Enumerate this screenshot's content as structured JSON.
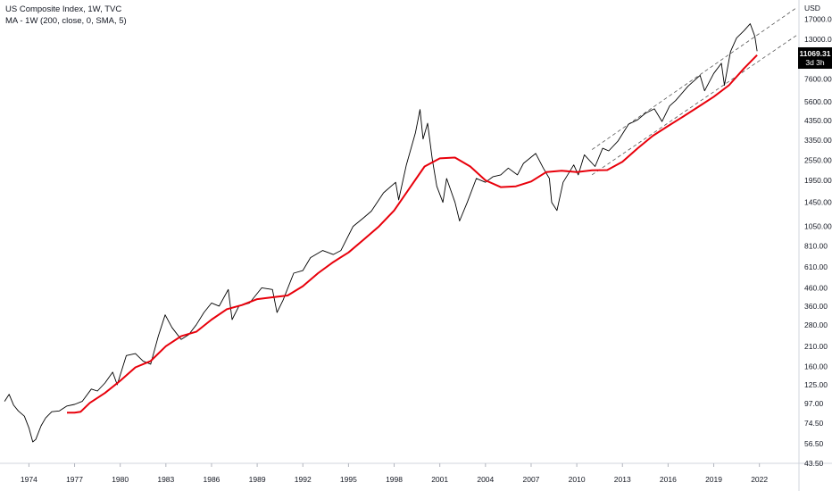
{
  "chart_data": {
    "type": "line",
    "title": "US Composite Index, 1W, TVC",
    "indicator": "MA - 1W (200, close, 0, SMA, 5)",
    "currency": "USD",
    "y_scale": "log",
    "ylim": [
      43.5,
      20000
    ],
    "xlim": [
      1972.6,
      2025.1
    ],
    "y_ticks": [
      "17000.00",
      "13000.00",
      "7600.00",
      "5600.00",
      "4350.00",
      "3350.00",
      "2550.00",
      "1950.00",
      "1450.00",
      "1050.00",
      "810.00",
      "610.00",
      "460.00",
      "360.00",
      "280.00",
      "210.00",
      "160.00",
      "125.00",
      "97.00",
      "74.50",
      "56.50",
      "43.50"
    ],
    "x_ticks": [
      "1974",
      "1977",
      "1980",
      "1983",
      "1986",
      "1989",
      "1992",
      "1995",
      "1998",
      "2001",
      "2004",
      "2007",
      "2010",
      "2013",
      "2016",
      "2019",
      "2022"
    ],
    "last_price": "11069.31",
    "countdown": "3d 3h",
    "grid": false,
    "series": [
      {
        "name": "US Composite Index",
        "color": "#000000",
        "points": [
          [
            1972.9,
            100
          ],
          [
            1973.2,
            110
          ],
          [
            1973.5,
            95
          ],
          [
            1973.8,
            88
          ],
          [
            1974.2,
            82
          ],
          [
            1974.5,
            70
          ],
          [
            1974.75,
            58
          ],
          [
            1974.95,
            60
          ],
          [
            1975.3,
            72
          ],
          [
            1975.6,
            80
          ],
          [
            1976.0,
            87
          ],
          [
            1976.5,
            88
          ],
          [
            1977.0,
            94
          ],
          [
            1977.5,
            96
          ],
          [
            1978.0,
            100
          ],
          [
            1978.6,
            118
          ],
          [
            1979.0,
            115
          ],
          [
            1979.5,
            128
          ],
          [
            1980.0,
            148
          ],
          [
            1980.3,
            125
          ],
          [
            1980.9,
            185
          ],
          [
            1981.5,
            190
          ],
          [
            1982.0,
            172
          ],
          [
            1982.5,
            165
          ],
          [
            1983.0,
            240
          ],
          [
            1983.45,
            320
          ],
          [
            1983.9,
            270
          ],
          [
            1984.5,
            230
          ],
          [
            1985.0,
            245
          ],
          [
            1985.5,
            280
          ],
          [
            1986.0,
            330
          ],
          [
            1986.5,
            375
          ],
          [
            1987.0,
            360
          ],
          [
            1987.6,
            450
          ],
          [
            1987.85,
            300
          ],
          [
            1988.3,
            360
          ],
          [
            1989.0,
            375
          ],
          [
            1989.8,
            460
          ],
          [
            1990.5,
            450
          ],
          [
            1990.8,
            330
          ],
          [
            1991.2,
            390
          ],
          [
            1991.9,
            560
          ],
          [
            1992.5,
            580
          ],
          [
            1993.0,
            690
          ],
          [
            1993.8,
            760
          ],
          [
            1994.5,
            720
          ],
          [
            1995.0,
            760
          ],
          [
            1995.8,
            1050
          ],
          [
            1996.5,
            1180
          ],
          [
            1997.0,
            1290
          ],
          [
            1997.8,
            1650
          ],
          [
            1998.6,
            1900
          ],
          [
            1998.8,
            1500
          ],
          [
            1999.3,
            2400
          ],
          [
            1999.9,
            3700
          ],
          [
            2000.2,
            5050
          ],
          [
            2000.4,
            3400
          ],
          [
            2000.7,
            4200
          ],
          [
            2001.0,
            2600
          ],
          [
            2001.3,
            1800
          ],
          [
            2001.7,
            1450
          ],
          [
            2001.95,
            2000
          ],
          [
            2002.5,
            1450
          ],
          [
            2002.8,
            1130
          ],
          [
            2003.3,
            1450
          ],
          [
            2003.9,
            2000
          ],
          [
            2004.5,
            1900
          ],
          [
            2005.0,
            2050
          ],
          [
            2005.5,
            2100
          ],
          [
            2006.0,
            2300
          ],
          [
            2006.6,
            2100
          ],
          [
            2007.0,
            2450
          ],
          [
            2007.8,
            2800
          ],
          [
            2008.3,
            2300
          ],
          [
            2008.7,
            2000
          ],
          [
            2008.85,
            1450
          ],
          [
            2009.2,
            1300
          ],
          [
            2009.6,
            1900
          ],
          [
            2010.3,
            2400
          ],
          [
            2010.6,
            2100
          ],
          [
            2011.0,
            2750
          ],
          [
            2011.7,
            2350
          ],
          [
            2012.2,
            3000
          ],
          [
            2012.6,
            2900
          ],
          [
            2013.2,
            3300
          ],
          [
            2013.9,
            4150
          ],
          [
            2014.5,
            4400
          ],
          [
            2015.0,
            4800
          ],
          [
            2015.6,
            5100
          ],
          [
            2016.1,
            4300
          ],
          [
            2016.6,
            5300
          ],
          [
            2017.0,
            5700
          ],
          [
            2017.8,
            6900
          ],
          [
            2018.6,
            8000
          ],
          [
            2018.9,
            6500
          ],
          [
            2019.5,
            8200
          ],
          [
            2020.0,
            9400
          ],
          [
            2020.2,
            7000
          ],
          [
            2020.6,
            11000
          ],
          [
            2021.0,
            13200
          ],
          [
            2021.5,
            14600
          ],
          [
            2021.9,
            16000
          ],
          [
            2022.2,
            13500
          ],
          [
            2022.35,
            11069
          ]
        ]
      },
      {
        "name": "MA - 1W (200, close, 0, SMA, 5)",
        "color": "#e8000b",
        "points": [
          [
            1977.0,
            86
          ],
          [
            1977.5,
            86
          ],
          [
            1977.9,
            87
          ],
          [
            1978.5,
            98
          ],
          [
            1979.5,
            112
          ],
          [
            1980.5,
            132
          ],
          [
            1981.5,
            158
          ],
          [
            1982.5,
            172
          ],
          [
            1983.5,
            210
          ],
          [
            1984.5,
            240
          ],
          [
            1985.5,
            255
          ],
          [
            1986.5,
            300
          ],
          [
            1987.5,
            345
          ],
          [
            1988.5,
            365
          ],
          [
            1989.5,
            395
          ],
          [
            1990.5,
            405
          ],
          [
            1991.5,
            415
          ],
          [
            1992.5,
            470
          ],
          [
            1993.5,
            560
          ],
          [
            1994.5,
            650
          ],
          [
            1995.5,
            740
          ],
          [
            1996.5,
            880
          ],
          [
            1997.5,
            1050
          ],
          [
            1998.5,
            1300
          ],
          [
            1999.5,
            1750
          ],
          [
            2000.5,
            2350
          ],
          [
            2001.5,
            2620
          ],
          [
            2002.5,
            2650
          ],
          [
            2003.5,
            2350
          ],
          [
            2004.5,
            1950
          ],
          [
            2005.5,
            1780
          ],
          [
            2006.5,
            1800
          ],
          [
            2007.5,
            1920
          ],
          [
            2008.5,
            2180
          ],
          [
            2009.5,
            2220
          ],
          [
            2010.5,
            2180
          ],
          [
            2011.5,
            2230
          ],
          [
            2012.5,
            2240
          ],
          [
            2013.5,
            2500
          ],
          [
            2014.5,
            3000
          ],
          [
            2015.5,
            3550
          ],
          [
            2016.5,
            4050
          ],
          [
            2017.5,
            4600
          ],
          [
            2018.5,
            5250
          ],
          [
            2019.5,
            6000
          ],
          [
            2020.5,
            7000
          ],
          [
            2021.5,
            8800
          ],
          [
            2022.35,
            10500
          ]
        ]
      }
    ],
    "trend_channel": [
      {
        "name": "upper",
        "points": [
          [
            2011.5,
            2950
          ],
          [
            2025.0,
            20000
          ]
        ]
      },
      {
        "name": "lower",
        "points": [
          [
            2011.5,
            2100
          ],
          [
            2025.0,
            13800
          ]
        ]
      }
    ]
  }
}
